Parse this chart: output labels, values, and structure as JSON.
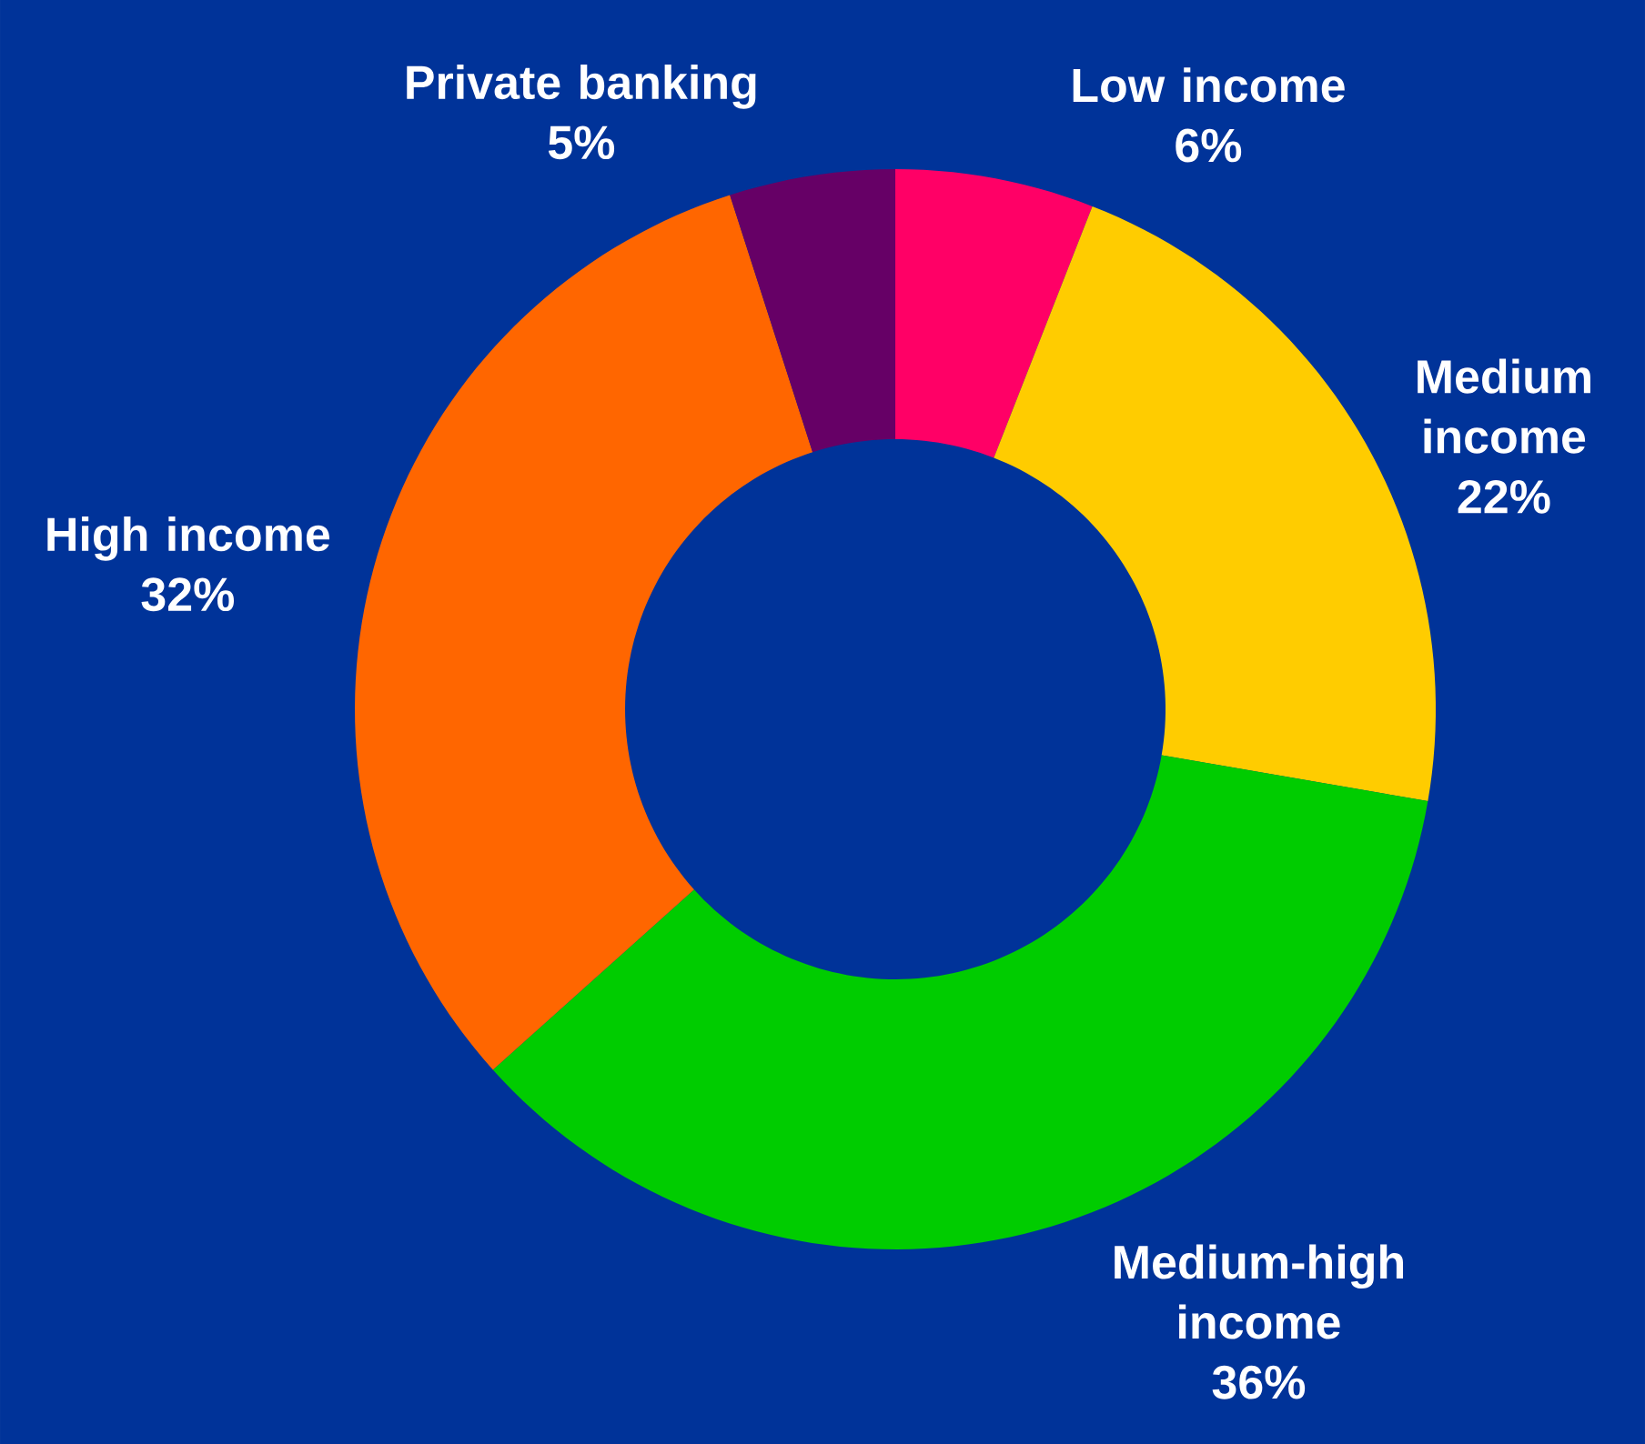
{
  "chart_data": {
    "type": "donut",
    "categories": [
      "Low income",
      "Medium income",
      "Medium-high income",
      "High income",
      "Private banking"
    ],
    "values": [
      6,
      22,
      36,
      32,
      5
    ],
    "value_labels": [
      "6%",
      "22%",
      "36%",
      "32%",
      "5%"
    ],
    "colors": [
      "#ff0066",
      "#ffcc00",
      "#00cc00",
      "#ff6600",
      "#660066"
    ],
    "legend": false
  }
}
